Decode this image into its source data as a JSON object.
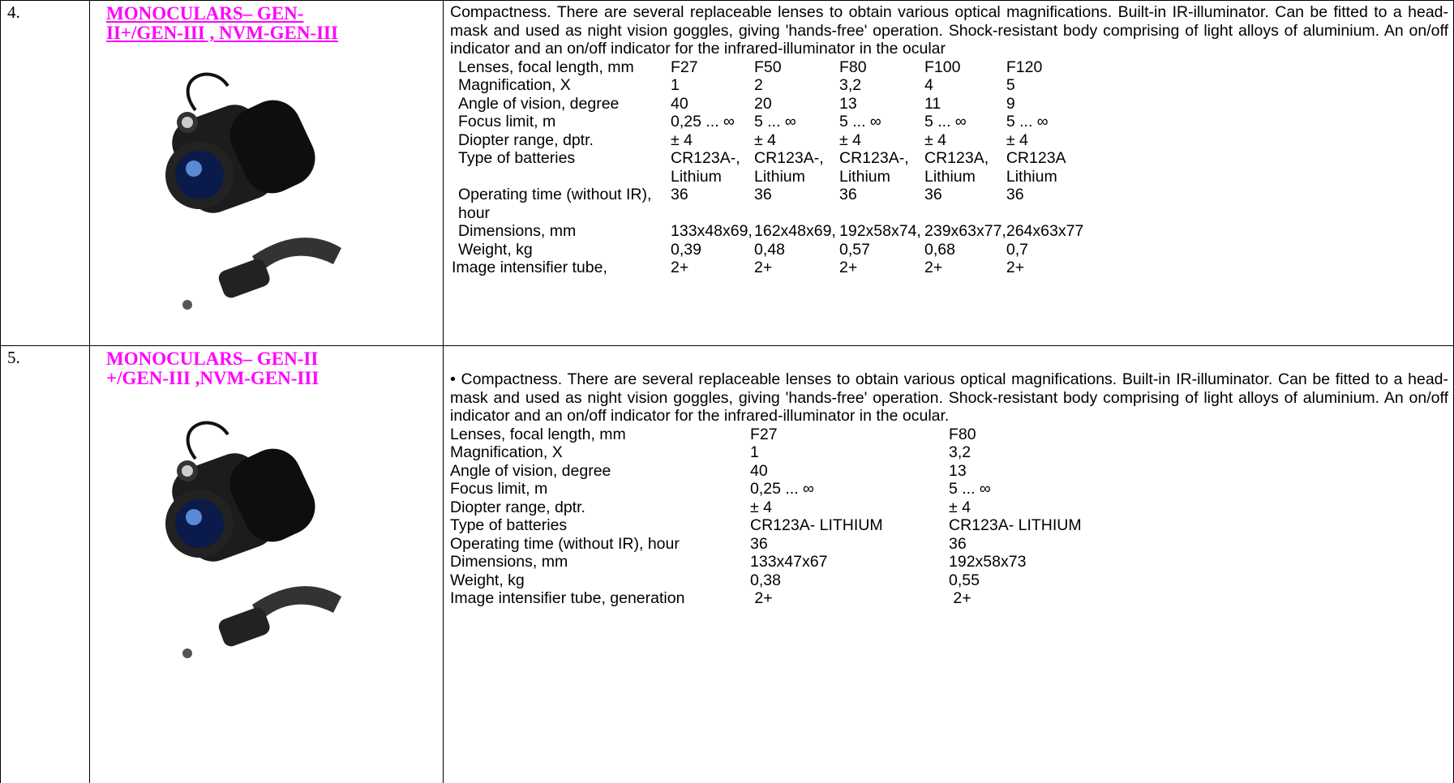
{
  "rows": [
    {
      "number": "4.",
      "title": "MONOCULARS– GEN-II+/GEN-III , NVM-GEN-III",
      "description": "Compactness. There are several replaceable lenses to obtain various optical magnifications. Built-in IR-illuminator. Can be fitted to a head-mask and used as night vision goggles, giving 'hands-free' operation. Shock-resistant body comprising of light alloys of aluminium. An on/off indicator and an on/off indicator for the infrared-illuminator in the ocular",
      "specs": [
        [
          "Lenses, focal length, mm",
          "F27",
          "F50",
          "F80",
          "F100",
          "F120"
        ],
        [
          "Magnification, X",
          "1",
          "2",
          "3,2",
          "4",
          "5"
        ],
        [
          "Angle of vision, degree",
          "40",
          "20",
          "13",
          "11",
          "9"
        ],
        [
          "Focus limit, m",
          "0,25 ... ∞",
          "5 ... ∞",
          "5 ... ∞",
          "5 ... ∞",
          "5 ... ∞"
        ],
        [
          "Diopter range, dptr.",
          "± 4",
          "± 4",
          "± 4",
          "± 4",
          "± 4"
        ],
        [
          "Type of batteries",
          "CR123A-, Lithium",
          "CR123A-, Lithium",
          "CR123A-, Lithium",
          "CR123A, Lithium",
          "CR123A Lithium"
        ],
        [
          "Operating time (without IR), hour",
          "36",
          "36",
          "36",
          "36",
          "36"
        ],
        [
          "Dimensions, mm",
          "133x48x69,",
          "162x48x69,",
          "192x58x74,",
          "239x63x77,",
          "264x63x77"
        ],
        [
          "Weight, kg",
          "0,39",
          "0,48",
          "0,57",
          "0,68",
          "0,7"
        ],
        [
          "Image intensifier tube,",
          "2+",
          "2+",
          "2+",
          "2+",
          "2+"
        ]
      ]
    },
    {
      "number": "5.",
      "title": "MONOCULARS– GEN-II +/GEN-III ,NVM-GEN-III",
      "description": "Compactness. There are several replaceable lenses to obtain various optical magnifications. Built-in IR-illuminator. Can be fitted to a head-mask and used as night vision goggles, giving 'hands-free' operation. Shock-resistant body comprising of light alloys of aluminium. An on/off indicator and an on/off indicator for the infrared-illuminator in the ocular.",
      "specs": [
        [
          "Lenses, focal length, mm",
          "F27",
          "F80"
        ],
        [
          "Magnification, X",
          "1",
          "3,2"
        ],
        [
          "Angle of vision, degree",
          "40",
          "13"
        ],
        [
          "Focus limit, m",
          "0,25 ... ∞",
          "5 ... ∞"
        ],
        [
          "Diopter range, dptr.",
          "± 4",
          "± 4"
        ],
        [
          "Type of batteries",
          "CR123A- LITHIUM",
          "CR123A- LITHIUM"
        ],
        [
          "Operating time (without IR), hour",
          "36",
          "36"
        ],
        [
          "Dimensions, mm",
          "133x47x67",
          "192x58x73"
        ],
        [
          "Weight, kg",
          "0,38",
          "0,55"
        ],
        [
          "Image intensifier tube, generation",
          " 2+",
          " 2+"
        ]
      ]
    }
  ]
}
